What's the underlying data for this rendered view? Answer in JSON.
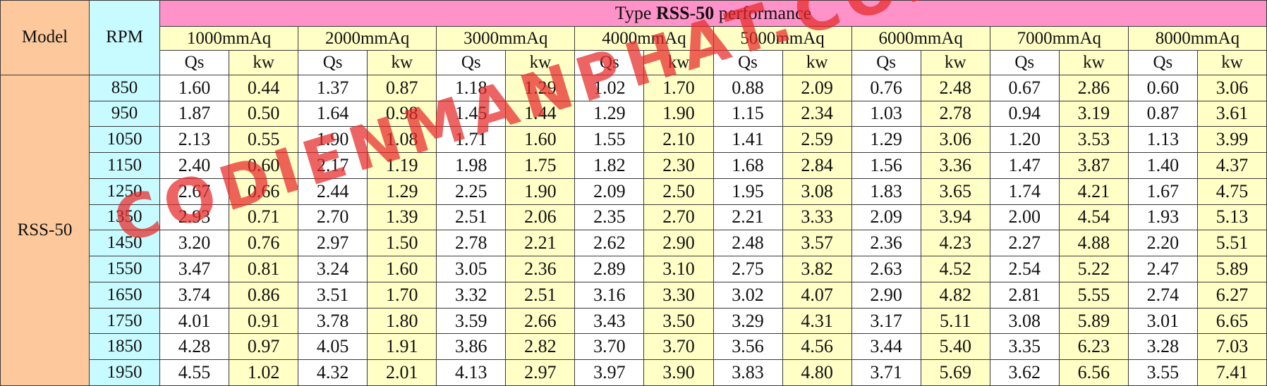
{
  "table": {
    "title_prefix": "Type ",
    "title_bold": "RSS-50",
    "title_suffix": " performance",
    "model_header": "Model",
    "rpm_header": "RPM",
    "model_value": "RSS-50",
    "pressures": [
      "1000mmAq",
      "2000mmAq",
      "3000mmAq",
      "4000mmAq",
      "5000mmAq",
      "6000mmAq",
      "7000mmAq",
      "8000mmAq"
    ],
    "sub_qs": "Qs",
    "sub_kw": "kw",
    "rows": [
      {
        "rpm": "850",
        "values": [
          "1.60",
          "0.44",
          "1.37",
          "0.87",
          "1.18",
          "1.29",
          "1.02",
          "1.70",
          "0.88",
          "2.09",
          "0.76",
          "2.48",
          "0.67",
          "2.86",
          "0.60",
          "3.06"
        ]
      },
      {
        "rpm": "950",
        "values": [
          "1.87",
          "0.50",
          "1.64",
          "0.98",
          "1.45",
          "1.44",
          "1.29",
          "1.90",
          "1.15",
          "2.34",
          "1.03",
          "2.78",
          "0.94",
          "3.19",
          "0.87",
          "3.61"
        ]
      },
      {
        "rpm": "1050",
        "values": [
          "2.13",
          "0.55",
          "1.90",
          "1.08",
          "1.71",
          "1.60",
          "1.55",
          "2.10",
          "1.41",
          "2.59",
          "1.29",
          "3.06",
          "1.20",
          "3.53",
          "1.13",
          "3.99"
        ]
      },
      {
        "rpm": "1150",
        "values": [
          "2.40",
          "0.60",
          "2.17",
          "1.19",
          "1.98",
          "1.75",
          "1.82",
          "2.30",
          "1.68",
          "2.84",
          "1.56",
          "3.36",
          "1.47",
          "3.87",
          "1.40",
          "4.37"
        ]
      },
      {
        "rpm": "1250",
        "values": [
          "2.67",
          "0.66",
          "2.44",
          "1.29",
          "2.25",
          "1.90",
          "2.09",
          "2.50",
          "1.95",
          "3.08",
          "1.83",
          "3.65",
          "1.74",
          "4.21",
          "1.67",
          "4.75"
        ]
      },
      {
        "rpm": "1350",
        "values": [
          "2.93",
          "0.71",
          "2.70",
          "1.39",
          "2.51",
          "2.06",
          "2.35",
          "2.70",
          "2.21",
          "3.33",
          "2.09",
          "3.94",
          "2.00",
          "4.54",
          "1.93",
          "5.13"
        ]
      },
      {
        "rpm": "1450",
        "values": [
          "3.20",
          "0.76",
          "2.97",
          "1.50",
          "2.78",
          "2.21",
          "2.62",
          "2.90",
          "2.48",
          "3.57",
          "2.36",
          "4.23",
          "2.27",
          "4.88",
          "2.20",
          "5.51"
        ]
      },
      {
        "rpm": "1550",
        "values": [
          "3.47",
          "0.81",
          "3.24",
          "1.60",
          "3.05",
          "2.36",
          "2.89",
          "3.10",
          "2.75",
          "3.82",
          "2.63",
          "4.52",
          "2.54",
          "5.22",
          "2.47",
          "5.89"
        ]
      },
      {
        "rpm": "1650",
        "values": [
          "3.74",
          "0.86",
          "3.51",
          "1.70",
          "3.32",
          "2.51",
          "3.16",
          "3.30",
          "3.02",
          "4.07",
          "2.90",
          "4.82",
          "2.81",
          "5.55",
          "2.74",
          "6.27"
        ]
      },
      {
        "rpm": "1750",
        "values": [
          "4.01",
          "0.91",
          "3.78",
          "1.80",
          "3.59",
          "2.66",
          "3.43",
          "3.50",
          "3.29",
          "4.31",
          "3.17",
          "5.11",
          "3.08",
          "5.89",
          "3.01",
          "6.65"
        ]
      },
      {
        "rpm": "1850",
        "values": [
          "4.28",
          "0.97",
          "4.05",
          "1.91",
          "3.86",
          "2.82",
          "3.70",
          "3.70",
          "3.56",
          "4.56",
          "3.44",
          "5.40",
          "3.35",
          "6.23",
          "3.28",
          "7.03"
        ]
      },
      {
        "rpm": "1950",
        "values": [
          "4.55",
          "1.02",
          "4.32",
          "2.01",
          "4.13",
          "2.97",
          "3.97",
          "3.90",
          "3.83",
          "4.80",
          "3.71",
          "5.69",
          "3.62",
          "6.56",
          "3.55",
          "7.41"
        ]
      }
    ]
  },
  "watermark": "CODIENMANPHAT.COM",
  "colors": {
    "model": "#fcc89c",
    "rpm": "#c8fbff",
    "title": "#ff92c8",
    "yellow": "#ffffc6",
    "watermark": "#e62828"
  }
}
